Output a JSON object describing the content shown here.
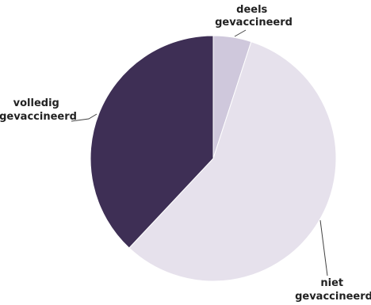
{
  "chart_data": {
    "type": "pie",
    "slices": [
      {
        "label_lines": [
          "deels",
          "gevaccineerd"
        ],
        "value": 5,
        "color": "#cfc8dc"
      },
      {
        "label_lines": [
          "niet",
          "gevaccineerd"
        ],
        "value": 57,
        "color": "#e6e1ec"
      },
      {
        "label_lines": [
          "volledig",
          "gevaccineerd"
        ],
        "value": 38,
        "color": "#3e2f55"
      }
    ]
  }
}
